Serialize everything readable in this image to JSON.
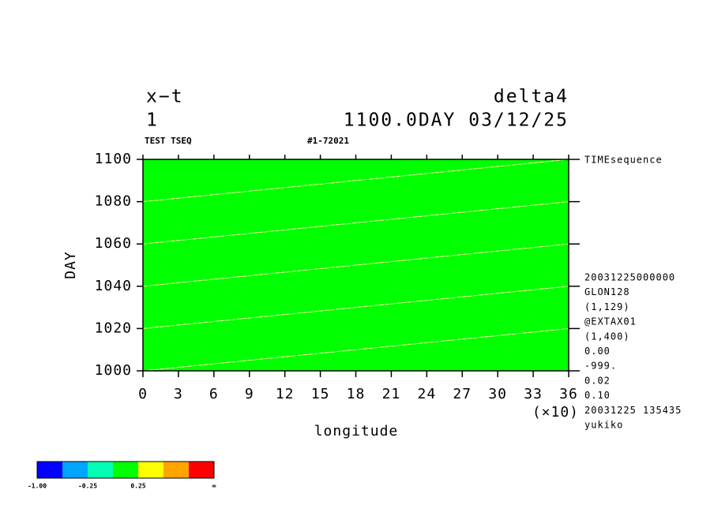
{
  "chart_data": {
    "type": "contour",
    "title": "x−t",
    "title_right": "delta4",
    "subtitle": "1",
    "subtitle_right": "1100.0DAY 03/12/25",
    "label_left": "TEST TSEQ",
    "label_center": "#1-72021",
    "xlabel": "longitude",
    "ylabel": "DAY",
    "x_multiplier": "(×10)",
    "xlim": [
      0,
      36
    ],
    "xticks": [
      0,
      3,
      6,
      9,
      12,
      15,
      18,
      21,
      24,
      27,
      30,
      33,
      36
    ],
    "ylim": [
      1000,
      1100
    ],
    "yticks": [
      1000,
      1020,
      1040,
      1060,
      1080,
      1100
    ],
    "fill_color": "#00ff00",
    "contour_color": "#ffffb0",
    "contours": [
      {
        "x": [
          0,
          36
        ],
        "y": [
          1000,
          1020
        ]
      },
      {
        "x": [
          0,
          36
        ],
        "y": [
          1020,
          1040
        ]
      },
      {
        "x": [
          0,
          36
        ],
        "y": [
          1040,
          1060
        ]
      },
      {
        "x": [
          0,
          36
        ],
        "y": [
          1060,
          1080
        ]
      },
      {
        "x": [
          0,
          36
        ],
        "y": [
          1080,
          1100
        ]
      }
    ],
    "info_top": "TIMEsequence",
    "info": [
      "20031225000000",
      "GLON128",
      "(1,129)",
      "@EXTAX01",
      "(1,400)",
      "0.00",
      "-999.",
      "0.02",
      "0.10",
      "20031225 135435",
      "yukiko"
    ],
    "colorbar": {
      "colors": [
        "#0000ff",
        "#00a5ff",
        "#00ffb4",
        "#00ff00",
        "#ffff00",
        "#ffa500",
        "#ff0000"
      ],
      "labels": [
        "-1.00",
        "-0.25",
        "0.25",
        "∞"
      ]
    }
  }
}
